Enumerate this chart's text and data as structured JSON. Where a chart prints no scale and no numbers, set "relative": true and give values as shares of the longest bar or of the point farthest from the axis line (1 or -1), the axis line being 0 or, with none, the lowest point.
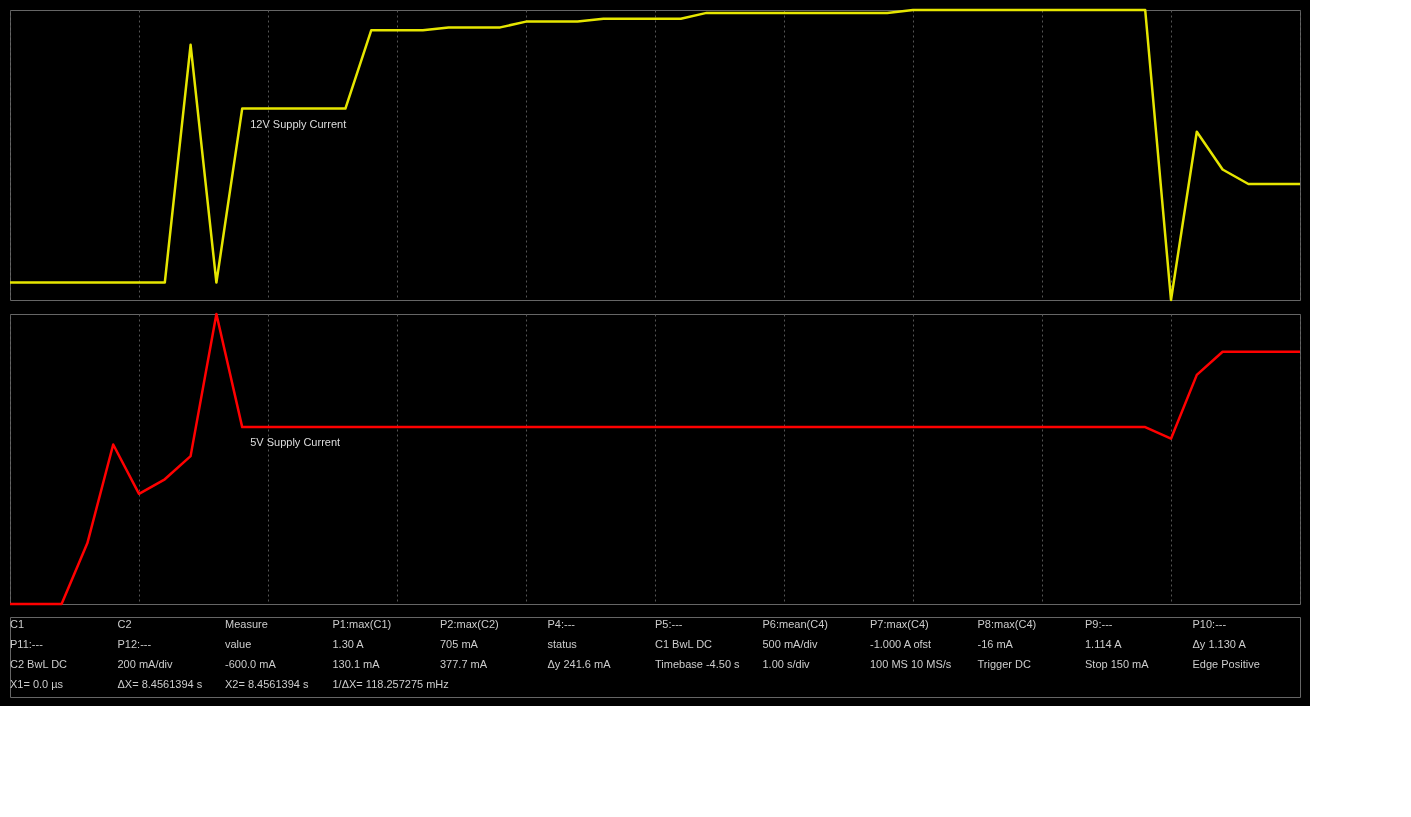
{
  "chart_data": [
    {
      "type": "line",
      "relative": true,
      "grid": "x",
      "legend": false,
      "line_style": "solid",
      "marker": "none",
      "categories": [
        null,
        null,
        null,
        null,
        null,
        null,
        null,
        null,
        null,
        null,
        null,
        null,
        null,
        null,
        null,
        null,
        null,
        null,
        null,
        null,
        null,
        null,
        null,
        null,
        null,
        null,
        null,
        null,
        null,
        null,
        null,
        null,
        null,
        null,
        null,
        null,
        null,
        null,
        null,
        null,
        null,
        null,
        null,
        null,
        null,
        null,
        null,
        null,
        null,
        null,
        null
      ],
      "series": [
        {
          "name": "12V Supply Current",
          "color": "#e6e600",
          "values": [
            0.06,
            0.06,
            0.06,
            0.06,
            0.06,
            0.06,
            0.06,
            0.88,
            0.06,
            0.66,
            0.66,
            0.66,
            0.66,
            0.66,
            0.93,
            0.93,
            0.93,
            0.94,
            0.94,
            0.94,
            0.96,
            0.96,
            0.96,
            0.97,
            0.97,
            0.97,
            0.97,
            0.99,
            0.99,
            0.99,
            0.99,
            0.99,
            0.99,
            0.99,
            0.99,
            1.0,
            1.0,
            1.0,
            1.0,
            1.0,
            1.0,
            1.0,
            1.0,
            1.0,
            1.0,
            0.0,
            0.58,
            0.45,
            0.4,
            0.4,
            0.4
          ]
        }
      ],
      "annotations": [
        "C1"
      ]
    },
    {
      "type": "line",
      "relative": true,
      "grid": "x",
      "legend": false,
      "line_style": "solid",
      "marker": "none",
      "categories": [
        null,
        null,
        null,
        null,
        null,
        null,
        null,
        null,
        null,
        null,
        null,
        null,
        null,
        null,
        null,
        null,
        null,
        null,
        null,
        null,
        null,
        null,
        null,
        null,
        null,
        null,
        null,
        null,
        null,
        null,
        null,
        null,
        null,
        null,
        null,
        null,
        null,
        null,
        null,
        null,
        null,
        null,
        null,
        null,
        null,
        null,
        null,
        null,
        null,
        null,
        null
      ],
      "series": [
        {
          "name": "5V Supply Current",
          "color": "#ff0000",
          "values": [
            0.0,
            0.0,
            0.0,
            0.21,
            0.55,
            0.38,
            0.43,
            0.51,
            1.0,
            0.61,
            0.61,
            0.61,
            0.61,
            0.61,
            0.61,
            0.61,
            0.61,
            0.61,
            0.61,
            0.61,
            0.61,
            0.61,
            0.61,
            0.61,
            0.61,
            0.61,
            0.61,
            0.61,
            0.61,
            0.61,
            0.61,
            0.61,
            0.61,
            0.61,
            0.61,
            0.61,
            0.61,
            0.61,
            0.61,
            0.61,
            0.61,
            0.61,
            0.61,
            0.61,
            0.61,
            0.57,
            0.79,
            0.87,
            0.87,
            0.87,
            0.87
          ]
        }
      ],
      "annotations": [
        "C2",
        "Measure",
        "P1:max(C1)",
        "P2:max(C2)",
        "P4:---",
        "P5:---",
        "P6:mean(C4)",
        "P7:max(C4)",
        "P8:max(C4)",
        "P9:---",
        "P10:---",
        "P11:---",
        "P12:---",
        "value",
        "1.30 A",
        "705 mA",
        "status",
        "C1 BwL DC",
        "500 mA/div",
        "-1.000 A ofst",
        "-16 mA",
        "1.114 A",
        "Δy 1.130 A",
        "C2 BwL DC",
        "200 mA/div",
        "-600.0 mA",
        "130.1 mA",
        "377.7 mA",
        "Δy 241.6 mA",
        "Timebase -4.50 s",
        "1.00 s/div",
        "100 MS 10 MS/s",
        "Trigger DC",
        "Stop 150 mA",
        "Edge Positive",
        "X1= 0.0 µs",
        "ΔX= 8.4561394 s",
        "X2= 8.4561394 s",
        "1/ΔX= 118.257275 mHz"
      ]
    }
  ]
}
